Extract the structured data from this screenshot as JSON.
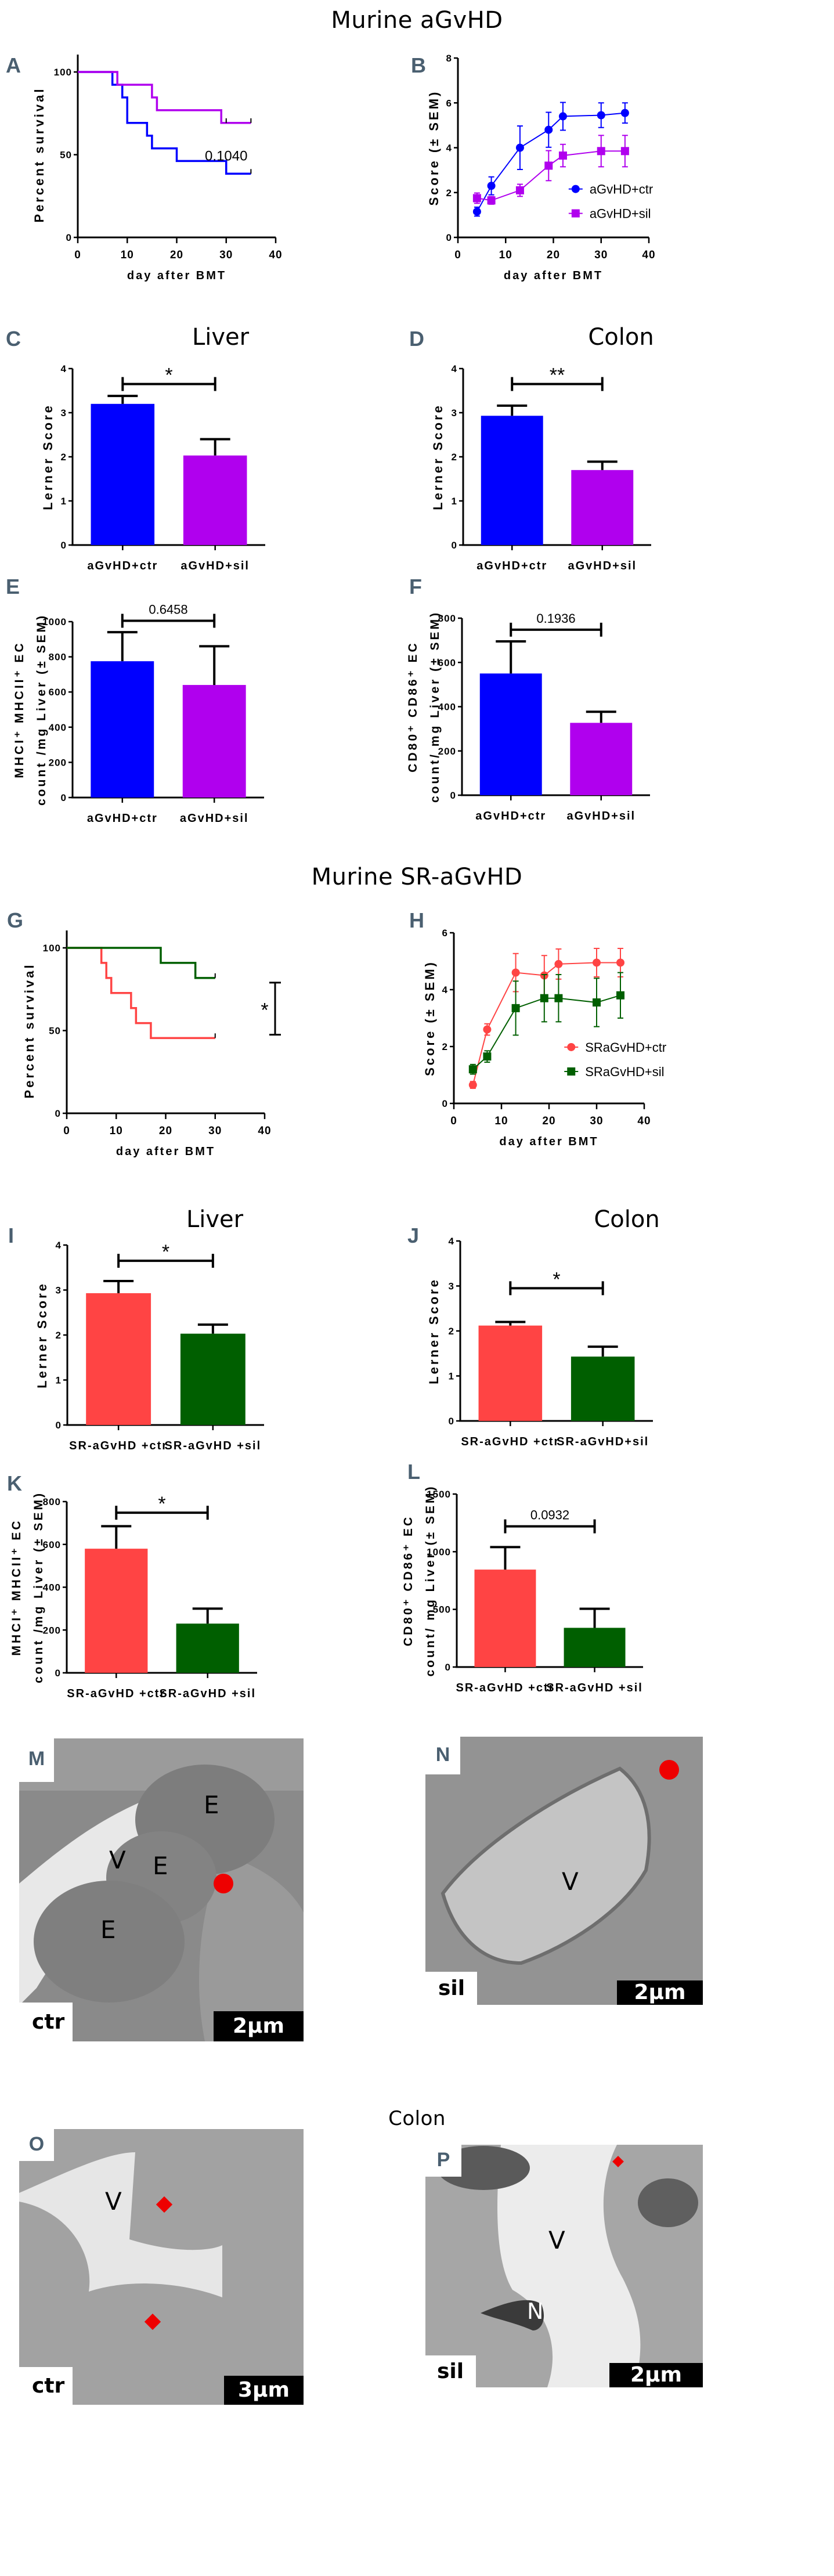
{
  "sections": {
    "murine_agvhd": "Murine aGvHD",
    "murine_sr_agvhd": "Murine SR-aGvHD",
    "colon_em": "Colon"
  },
  "panel_letters": {
    "A": "A",
    "B": "B",
    "C": "C",
    "D": "D",
    "E": "E",
    "F": "F",
    "G": "G",
    "H": "H",
    "I": "I",
    "J": "J",
    "K": "K",
    "L": "L",
    "M": "M",
    "N": "N",
    "O": "O",
    "P": "P"
  },
  "organ_titles": {
    "C": "Liver",
    "D": "Colon",
    "I": "Liver",
    "J": "Colon"
  },
  "colors": {
    "agvhd_ctr": "#0000ff",
    "agvhd_sil": "#b000ee",
    "sr_ctr": "#ff4444",
    "sr_sil": "#005f00",
    "panel_letter": "#4a5f70",
    "marker_red": "#ee0000"
  },
  "chart_data": [
    {
      "id": "A",
      "type": "line",
      "subtype": "kaplan-meier",
      "title": "",
      "xlabel": "day after BMT",
      "ylabel": "Percent survival",
      "xlim": [
        0,
        40
      ],
      "ylim": [
        0,
        100
      ],
      "xticks": [
        "0",
        "10",
        "20",
        "30",
        "40"
      ],
      "yticks": [
        "0",
        "50",
        "100"
      ],
      "annotation": "0.1040",
      "series": [
        {
          "name": "aGvHD+ctr",
          "color": "#0000ff",
          "steps": [
            [
              0,
              100
            ],
            [
              7,
              92.3
            ],
            [
              9,
              84.6
            ],
            [
              10,
              69.2
            ],
            [
              14,
              61.5
            ],
            [
              15,
              53.8
            ],
            [
              20,
              46.2
            ],
            [
              30,
              38.5
            ],
            [
              35,
              38.5
            ]
          ]
        },
        {
          "name": "aGvHD+sil",
          "color": "#b000ee",
          "steps": [
            [
              0,
              100
            ],
            [
              8,
              92.3
            ],
            [
              15,
              84.6
            ],
            [
              16,
              76.9
            ],
            [
              29,
              69.2
            ],
            [
              35,
              69.2
            ]
          ]
        }
      ],
      "censor_marks": [
        {
          "series": 1,
          "x": 30,
          "y": 69.2
        },
        {
          "series": 1,
          "x": 35,
          "y": 69.2
        },
        {
          "series": 0,
          "x": 35,
          "y": 38.5
        }
      ]
    },
    {
      "id": "B",
      "type": "line",
      "title": "",
      "xlabel": "day after BMT",
      "ylabel": "Score (± SEM)",
      "xlim": [
        0,
        40
      ],
      "ylim": [
        0,
        8
      ],
      "xticks": [
        "0",
        "10",
        "20",
        "30",
        "40"
      ],
      "yticks": [
        "0",
        "2",
        "4",
        "6",
        "8"
      ],
      "legend": "right",
      "x": [
        4,
        7,
        13,
        19,
        22,
        30,
        35
      ],
      "series": [
        {
          "name": "aGvHD+ctr",
          "marker": "circle",
          "color": "#0000ff",
          "values": [
            1.15,
            2.3,
            4.0,
            4.8,
            5.4,
            5.45,
            5.55
          ],
          "sem": [
            0.2,
            0.4,
            0.97,
            0.78,
            0.62,
            0.55,
            0.45
          ]
        },
        {
          "name": "aGvHD+sil",
          "marker": "square",
          "color": "#b000ee",
          "values": [
            1.75,
            1.65,
            2.1,
            3.2,
            3.65,
            3.85,
            3.85
          ],
          "sem": [
            0.23,
            0.17,
            0.27,
            0.67,
            0.5,
            0.7,
            0.7
          ]
        }
      ]
    },
    {
      "id": "C",
      "type": "bar",
      "title": "Liver",
      "xlabel": "",
      "ylabel": "Lerner Score",
      "ylim": [
        0,
        4
      ],
      "yticks": [
        "0",
        "1",
        "2",
        "3",
        "4"
      ],
      "categories": [
        "aGvHD+ctr",
        "aGvHD+sil"
      ],
      "values": [
        3.2,
        2.03
      ],
      "sem": [
        0.18,
        0.37
      ],
      "colors": [
        "#0000ff",
        "#b000ee"
      ],
      "significance": {
        "label": "*",
        "level": 3.65
      }
    },
    {
      "id": "D",
      "type": "bar",
      "title": "Colon",
      "xlabel": "",
      "ylabel": "Lerner Score",
      "ylim": [
        0,
        4
      ],
      "yticks": [
        "0",
        "1",
        "2",
        "3",
        "4"
      ],
      "categories": [
        "aGvHD+ctr",
        "aGvHD+sil"
      ],
      "values": [
        2.93,
        1.7
      ],
      "sem": [
        0.23,
        0.19
      ],
      "colors": [
        "#0000ff",
        "#b000ee"
      ],
      "significance": {
        "label": "**",
        "level": 3.65
      }
    },
    {
      "id": "E",
      "type": "bar",
      "title": "",
      "xlabel": "",
      "ylabel": "MHCI⁺ MHCII⁺ EC|count /mg Liver (± SEM)",
      "ylim": [
        0,
        1000
      ],
      "yticks": [
        "0",
        "200",
        "400",
        "600",
        "800",
        "1000"
      ],
      "categories": [
        "aGvHD+ctr",
        "aGvHD+sil"
      ],
      "values": [
        775,
        640
      ],
      "sem": [
        165,
        220
      ],
      "colors": [
        "#0000ff",
        "#b000ee"
      ],
      "significance": {
        "label": "0.6458",
        "level": 1005
      }
    },
    {
      "id": "F",
      "type": "bar",
      "title": "",
      "xlabel": "",
      "ylabel": "CD80⁺ CD86⁺ EC|count/ mg Liver (± SEM)",
      "ylim": [
        0,
        800
      ],
      "yticks": [
        "0",
        "200",
        "400",
        "600",
        "800"
      ],
      "categories": [
        "aGvHD+ctr",
        "aGvHD+sil"
      ],
      "values": [
        550,
        327
      ],
      "sem": [
        145,
        50
      ],
      "colors": [
        "#0000ff",
        "#b000ee"
      ],
      "significance": {
        "label": "0.1936",
        "level": 748
      }
    },
    {
      "id": "G",
      "type": "line",
      "subtype": "kaplan-meier",
      "title": "",
      "xlabel": "day after BMT",
      "ylabel": "Percent survival",
      "xlim": [
        0,
        40
      ],
      "ylim": [
        0,
        100
      ],
      "xticks": [
        "0",
        "10",
        "20",
        "30",
        "40"
      ],
      "yticks": [
        "0",
        "50",
        "100"
      ],
      "annotation": "*",
      "series": [
        {
          "name": "SRaGvHD+ctr",
          "color": "#ff4444",
          "steps": [
            [
              0,
              100
            ],
            [
              7,
              90.9
            ],
            [
              8,
              81.8
            ],
            [
              9,
              72.7
            ],
            [
              13,
              63.6
            ],
            [
              14,
              54.5
            ],
            [
              17,
              45.5
            ],
            [
              30,
              45.5
            ]
          ]
        },
        {
          "name": "SRaGvHD+sil",
          "color": "#005f00",
          "steps": [
            [
              0,
              100
            ],
            [
              19,
              90.9
            ],
            [
              26,
              81.8
            ],
            [
              30,
              81.8
            ]
          ]
        }
      ]
    },
    {
      "id": "H",
      "type": "line",
      "title": "",
      "xlabel": "day after BMT",
      "ylabel": "Score (± SEM)",
      "xlim": [
        0,
        40
      ],
      "ylim": [
        0,
        6
      ],
      "xticks": [
        "0",
        "10",
        "20",
        "30",
        "40"
      ],
      "yticks": [
        "0",
        "2",
        "4",
        "6"
      ],
      "legend": "right",
      "x": [
        4,
        7,
        13,
        19,
        22,
        30,
        35
      ],
      "series": [
        {
          "name": "SRaGvHD+ctr",
          "marker": "circle",
          "color": "#ff4444",
          "values": [
            0.65,
            2.6,
            4.6,
            4.5,
            4.9,
            4.95,
            4.95
          ],
          "sem": [
            0.12,
            0.2,
            0.67,
            0.7,
            0.53,
            0.5,
            0.5
          ]
        },
        {
          "name": "SRaGvHD+sil",
          "marker": "square",
          "color": "#005f00",
          "values": [
            1.2,
            1.65,
            3.35,
            3.7,
            3.7,
            3.55,
            3.8
          ],
          "sem": [
            0.17,
            0.2,
            0.95,
            0.83,
            0.83,
            0.85,
            0.8
          ]
        }
      ]
    },
    {
      "id": "I",
      "type": "bar",
      "title": "Liver",
      "xlabel": "",
      "ylabel": "Lerner Score",
      "ylim": [
        0,
        4
      ],
      "yticks": [
        "0",
        "1",
        "2",
        "3",
        "4"
      ],
      "categories": [
        "SR-aGvHD +ctr",
        "SR-aGvHD +sil"
      ],
      "values": [
        2.93,
        2.03
      ],
      "sem": [
        0.27,
        0.2
      ],
      "colors": [
        "#ff4444",
        "#005f00"
      ],
      "significance": {
        "label": "*",
        "level": 3.65
      }
    },
    {
      "id": "J",
      "type": "bar",
      "title": "Colon",
      "xlabel": "",
      "ylabel": "Lerner Score",
      "ylim": [
        0,
        4
      ],
      "yticks": [
        "0",
        "1",
        "2",
        "3",
        "4"
      ],
      "categories": [
        "SR-aGvHD +ctr",
        "SR-aGvHD+sil"
      ],
      "values": [
        2.12,
        1.43
      ],
      "sem": [
        0.08,
        0.22
      ],
      "colors": [
        "#ff4444",
        "#005f00"
      ],
      "significance": {
        "label": "*",
        "level": 2.95
      }
    },
    {
      "id": "K",
      "type": "bar",
      "title": "",
      "xlabel": "",
      "ylabel": "MHCI⁺ MHCII⁺ EC|count /mg Liver (± SEM)",
      "ylim": [
        0,
        800
      ],
      "yticks": [
        "0",
        "200",
        "400",
        "600",
        "800"
      ],
      "categories": [
        "SR-aGvHD +ctr",
        "SR-aGvHD +sil"
      ],
      "values": [
        580,
        230
      ],
      "sem": [
        105,
        70
      ],
      "colors": [
        "#ff4444",
        "#005f00"
      ],
      "significance": {
        "label": "*",
        "level": 748
      }
    },
    {
      "id": "L",
      "type": "bar",
      "title": "",
      "xlabel": "",
      "ylabel": "CD80⁺ CD86⁺ EC|count/ mg Liver (± SEM)",
      "ylim": [
        0,
        1500
      ],
      "yticks": [
        "0",
        "500",
        "1000",
        "1500"
      ],
      "categories": [
        "SR-aGvHD +ctr",
        "SR-aGvHD +sil"
      ],
      "values": [
        845,
        340
      ],
      "sem": [
        195,
        165
      ],
      "colors": [
        "#ff4444",
        "#005f00"
      ],
      "significance": {
        "label": "0.0932",
        "level": 1220
      }
    }
  ],
  "em_panels": [
    {
      "id": "M",
      "condition": "ctr",
      "scale": "2µm",
      "labels": [
        "V",
        "E",
        "E",
        "E"
      ],
      "marker": "circle"
    },
    {
      "id": "N",
      "condition": "sil",
      "scale": "2µm",
      "labels": [
        "V"
      ],
      "marker": "circle"
    },
    {
      "id": "O",
      "condition": "ctr",
      "scale": "3µm",
      "labels": [
        "V"
      ],
      "marker": "diamond"
    },
    {
      "id": "P",
      "condition": "sil",
      "scale": "2µm",
      "labels": [
        "V",
        "N"
      ],
      "marker": "diamond"
    }
  ]
}
